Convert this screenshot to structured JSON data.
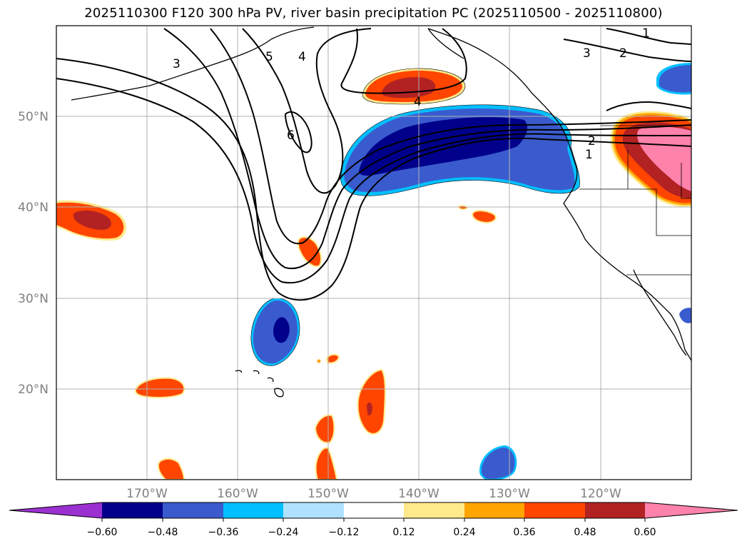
{
  "title": "2025110300 F120 300 hPa PV, river basin precipitation PC (2025110500 - 2025110800)",
  "axes": {
    "lat_labels": [
      "50°N",
      "40°N",
      "30°N",
      "20°N"
    ],
    "lon_labels": [
      "170°W",
      "160°W",
      "150°W",
      "140°W",
      "130°W",
      "120°W"
    ]
  },
  "contour_labels": [
    "1",
    "2",
    "3",
    "4",
    "5",
    "6",
    "4",
    "3",
    "2",
    "1"
  ],
  "colorbar": {
    "ticks": [
      "−0.60",
      "−0.48",
      "−0.36",
      "−0.24",
      "−0.12",
      "0.12",
      "0.24",
      "0.36",
      "0.48",
      "0.60"
    ],
    "colors": [
      "#9b30d0",
      "#00008b",
      "#3a5bcd",
      "#00bfff",
      "#b0e2ff",
      "#ffffff",
      "#ffe98a",
      "#ffa500",
      "#ff4500",
      "#b22222",
      "#ff82ab"
    ]
  },
  "colors": {
    "strong_negative": "#00008b",
    "negative": "#3a5bcd",
    "weak_negative": "#00bfff",
    "weak_positive": "#ffe98a",
    "positive": "#ff4500",
    "strong_positive": "#b22222",
    "extreme_positive": "#ff82ab"
  }
}
